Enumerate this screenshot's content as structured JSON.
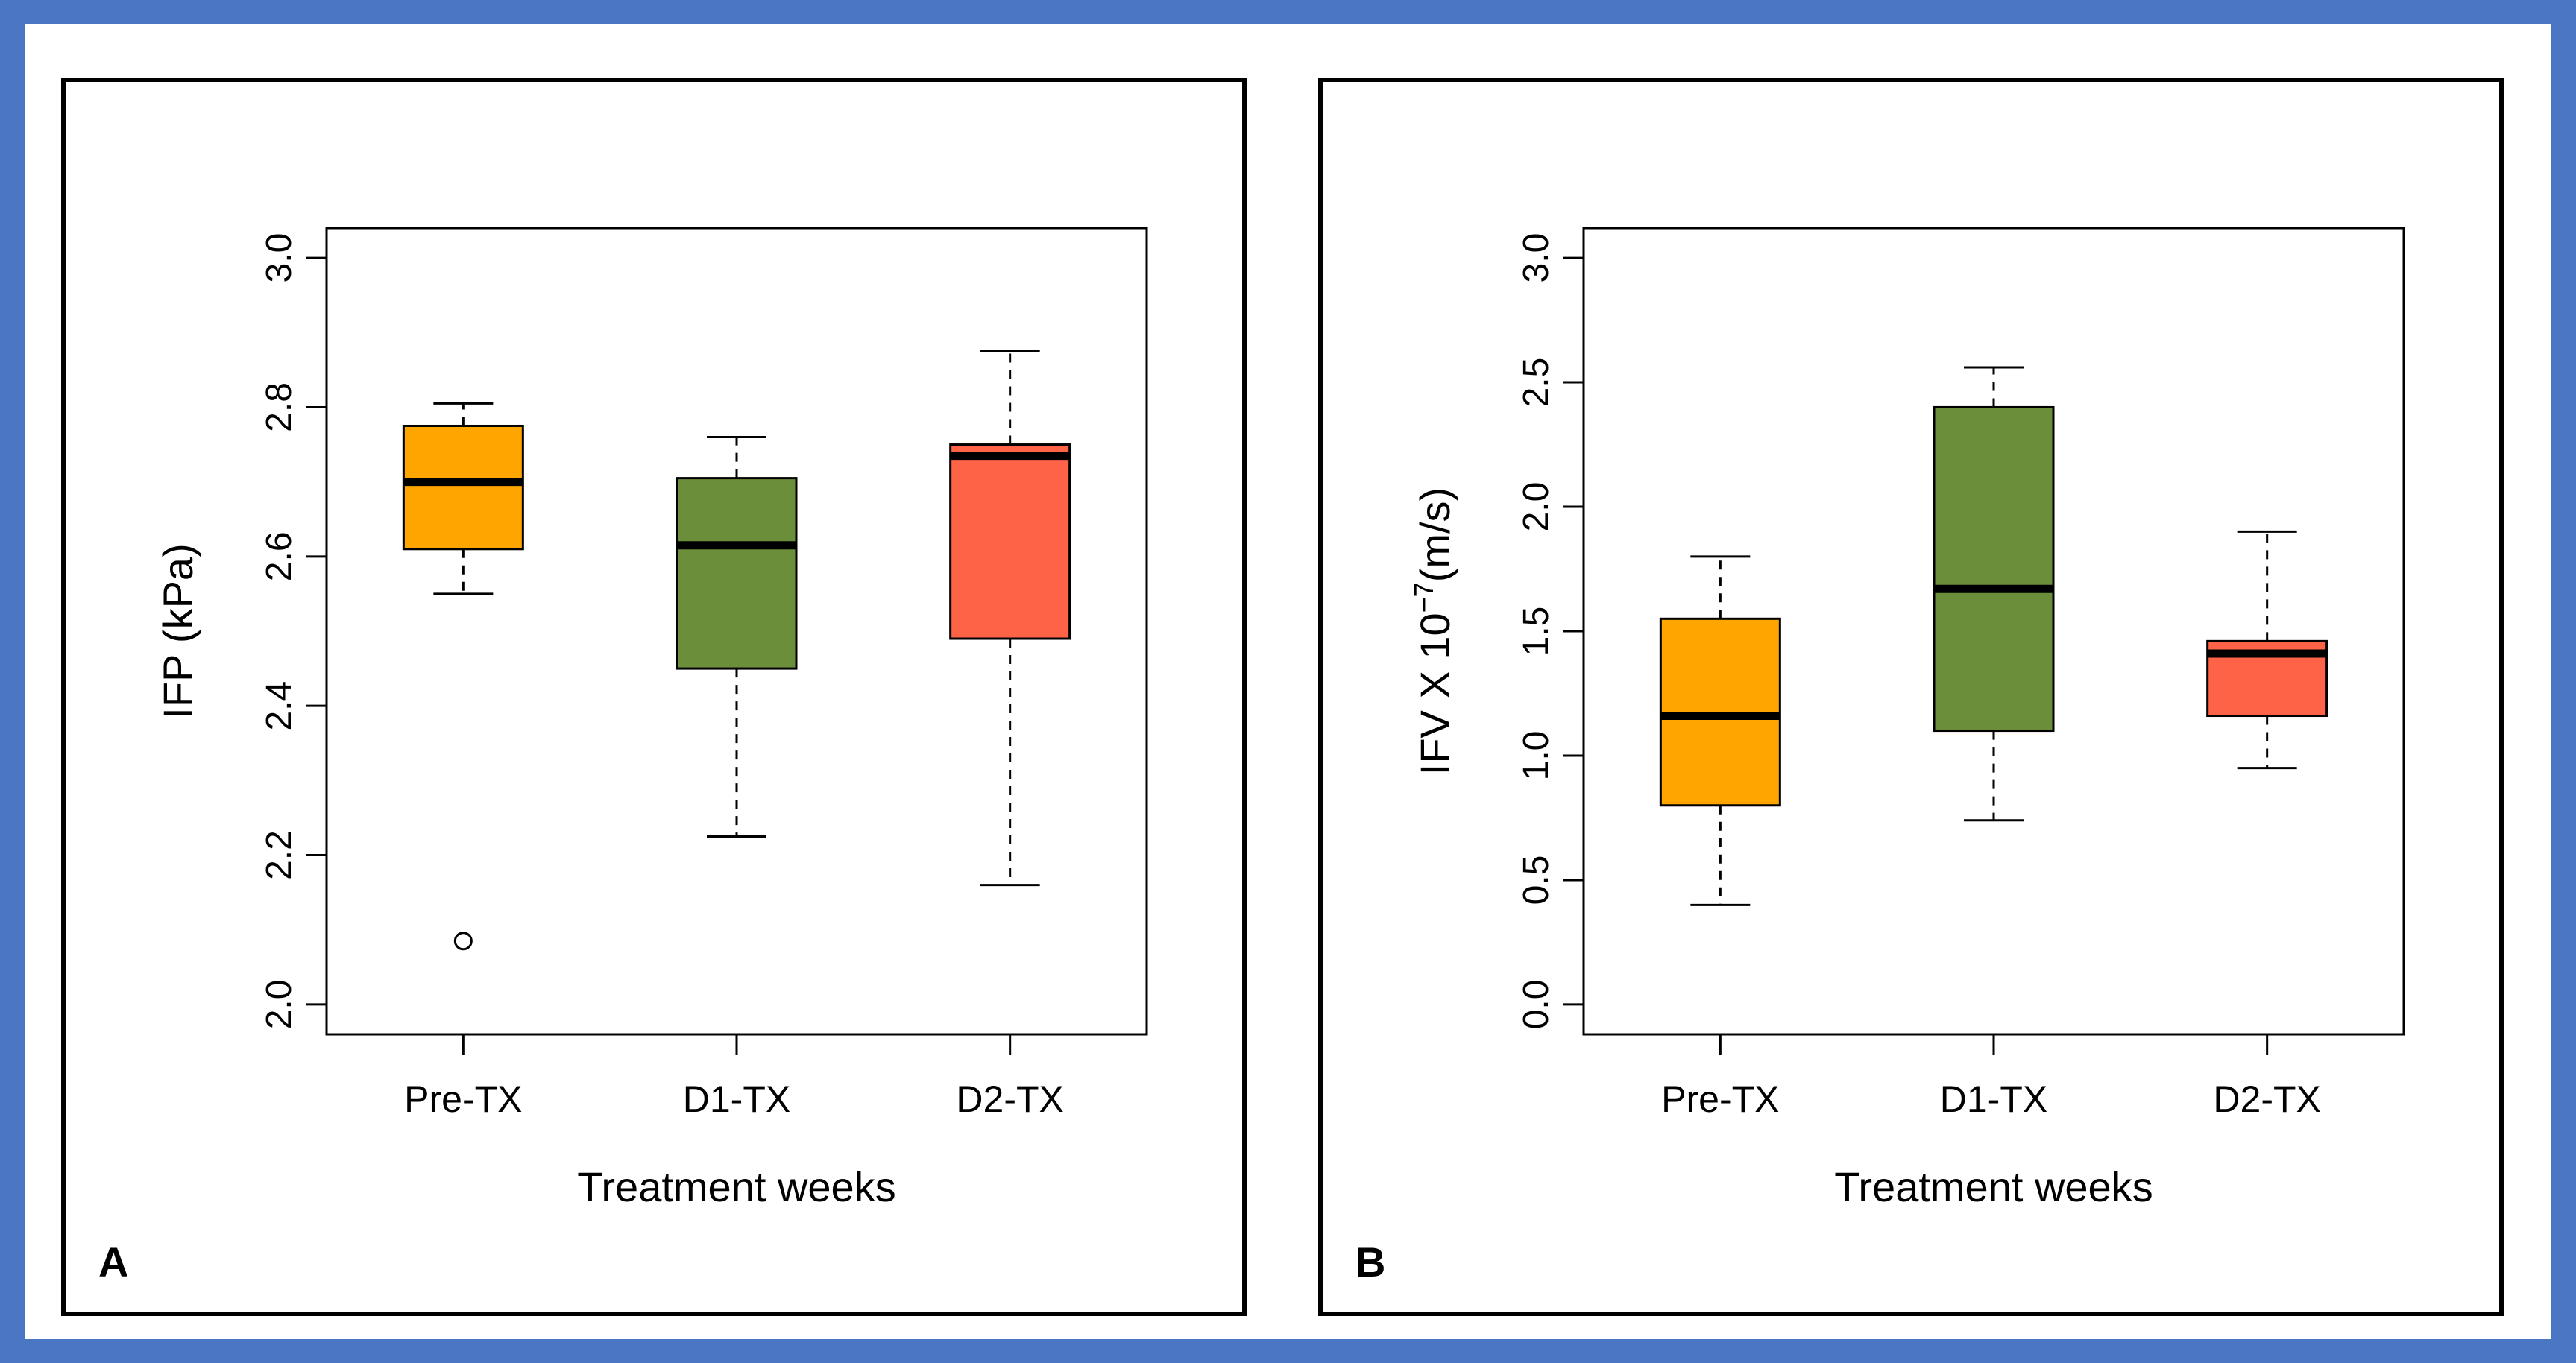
{
  "chart_data": [
    {
      "type": "boxplot",
      "panel_label": "A",
      "xlabel": "Treatment weeks",
      "ylabel": "IFP (kPa)",
      "ylim": [
        1.96,
        3.04
      ],
      "yticks": [
        2.0,
        2.2,
        2.4,
        2.6,
        2.8,
        3.0
      ],
      "ytick_labels": [
        "2.0",
        "2.2",
        "2.4",
        "2.6",
        "2.8",
        "3.0"
      ],
      "categories": [
        "Pre-TX",
        "D1-TX",
        "D2-TX"
      ],
      "boxes": [
        {
          "category": "Pre-TX",
          "whisker_low": 2.55,
          "q1": 2.61,
          "median": 2.7,
          "q3": 2.775,
          "whisker_high": 2.805,
          "outliers": [
            2.085
          ],
          "color": "#FFA500"
        },
        {
          "category": "D1-TX",
          "whisker_low": 2.225,
          "q1": 2.45,
          "median": 2.615,
          "q3": 2.705,
          "whisker_high": 2.76,
          "outliers": [],
          "color": "#6B8E3A"
        },
        {
          "category": "D2-TX",
          "whisker_low": 2.16,
          "q1": 2.49,
          "median": 2.735,
          "q3": 2.75,
          "whisker_high": 2.875,
          "outliers": [],
          "color": "#FF6347"
        }
      ]
    },
    {
      "type": "boxplot",
      "panel_label": "B",
      "xlabel": "Treatment weeks",
      "ylabel": "IFV X 10",
      "ylabel_exponent": "−7",
      "ylabel_unit": "(m/s)",
      "ylim": [
        -0.12,
        3.12
      ],
      "yticks": [
        0.0,
        0.5,
        1.0,
        1.5,
        2.0,
        2.5,
        3.0
      ],
      "ytick_labels": [
        "0.0",
        "0.5",
        "1.0",
        "1.5",
        "2.0",
        "2.5",
        "3.0"
      ],
      "categories": [
        "Pre-TX",
        "D1-TX",
        "D2-TX"
      ],
      "boxes": [
        {
          "category": "Pre-TX",
          "whisker_low": 0.4,
          "q1": 0.8,
          "median": 1.16,
          "q3": 1.55,
          "whisker_high": 1.8,
          "outliers": [],
          "color": "#FFA500"
        },
        {
          "category": "D1-TX",
          "whisker_low": 0.74,
          "q1": 1.1,
          "median": 1.67,
          "q3": 2.4,
          "whisker_high": 2.56,
          "outliers": [],
          "color": "#6B8E3A"
        },
        {
          "category": "D2-TX",
          "whisker_low": 0.95,
          "q1": 1.16,
          "median": 1.41,
          "q3": 1.46,
          "whisker_high": 1.9,
          "outliers": [],
          "color": "#FF6347"
        }
      ]
    }
  ]
}
